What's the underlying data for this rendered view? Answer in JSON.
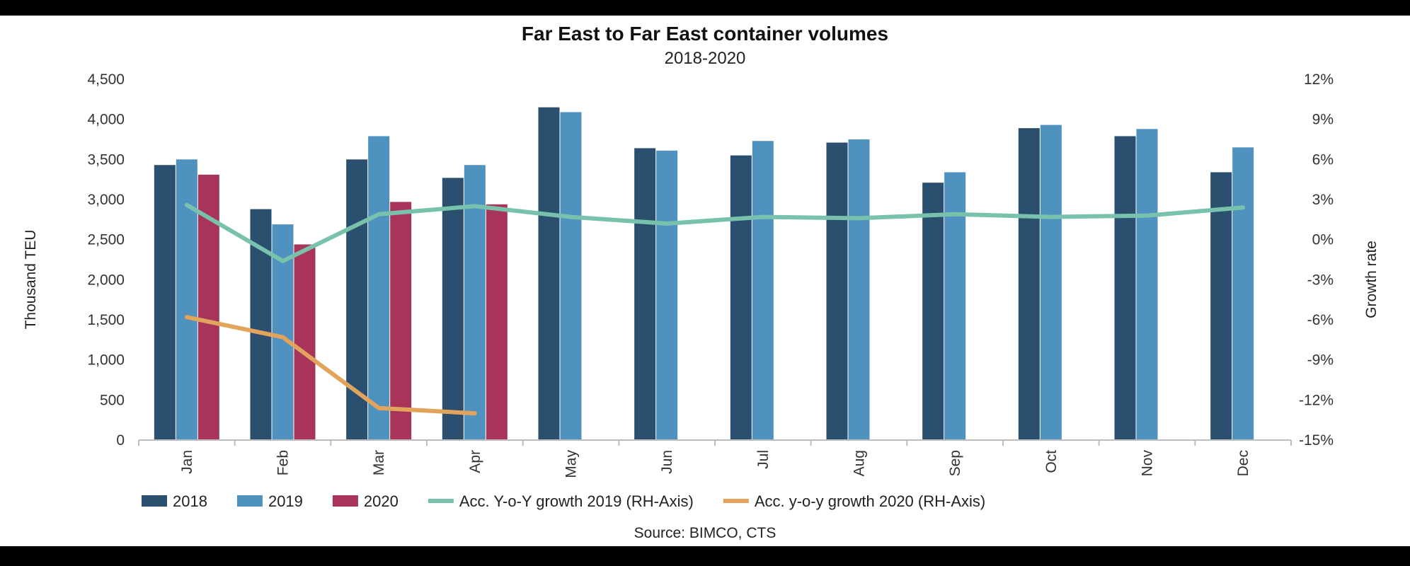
{
  "chart_data": {
    "type": "bar",
    "title": "Far East to Far East container volumes",
    "subtitle": "2018-2020",
    "ylabel": "Thousand TEU",
    "y2label": "Growth rate",
    "source": "Source: BIMCO, CTS",
    "categories": [
      "Jan",
      "Feb",
      "Mar",
      "Apr",
      "May",
      "Jun",
      "Jul",
      "Aug",
      "Sep",
      "Oct",
      "Nov",
      "Dec"
    ],
    "ylim": [
      0,
      4500
    ],
    "y_ticks": [
      "0",
      "500",
      "1,000",
      "1,500",
      "2,000",
      "2,500",
      "3,000",
      "3,500",
      "4,000",
      "4,500"
    ],
    "y2lim": [
      -15,
      12
    ],
    "y2_ticks": [
      "-15%",
      "-12%",
      "-9%",
      "-6%",
      "-3%",
      "0%",
      "3%",
      "6%",
      "9%",
      "12%"
    ],
    "grid": false,
    "legend_position": "bottom",
    "series": [
      {
        "name": "2018",
        "type": "bar",
        "color": "#2b4f6f",
        "values": [
          3430,
          2880,
          3500,
          3270,
          4150,
          3640,
          3550,
          3710,
          3210,
          3890,
          3790,
          3340
        ]
      },
      {
        "name": "2019",
        "type": "bar",
        "color": "#4f91bf",
        "values": [
          3500,
          2690,
          3790,
          3430,
          4090,
          3610,
          3730,
          3750,
          3340,
          3930,
          3880,
          3650
        ]
      },
      {
        "name": "2020",
        "type": "bar",
        "color": "#a8345a",
        "values": [
          3310,
          2440,
          2970,
          2940,
          null,
          null,
          null,
          null,
          null,
          null,
          null,
          null
        ]
      },
      {
        "name": "Acc. Y-o-Y growth 2019 (RH-Axis)",
        "type": "line",
        "axis": "right",
        "color": "#78c2ad",
        "values": [
          2.6,
          -1.6,
          1.9,
          2.5,
          1.7,
          1.2,
          1.7,
          1.6,
          1.9,
          1.7,
          1.8,
          2.4
        ]
      },
      {
        "name": "Acc. y-o-y growth 2020 (RH-Axis)",
        "type": "line",
        "axis": "right",
        "color": "#e2a35c",
        "values": [
          -5.8,
          -7.3,
          -12.6,
          -13.0,
          null,
          null,
          null,
          null,
          null,
          null,
          null,
          null
        ]
      }
    ]
  }
}
